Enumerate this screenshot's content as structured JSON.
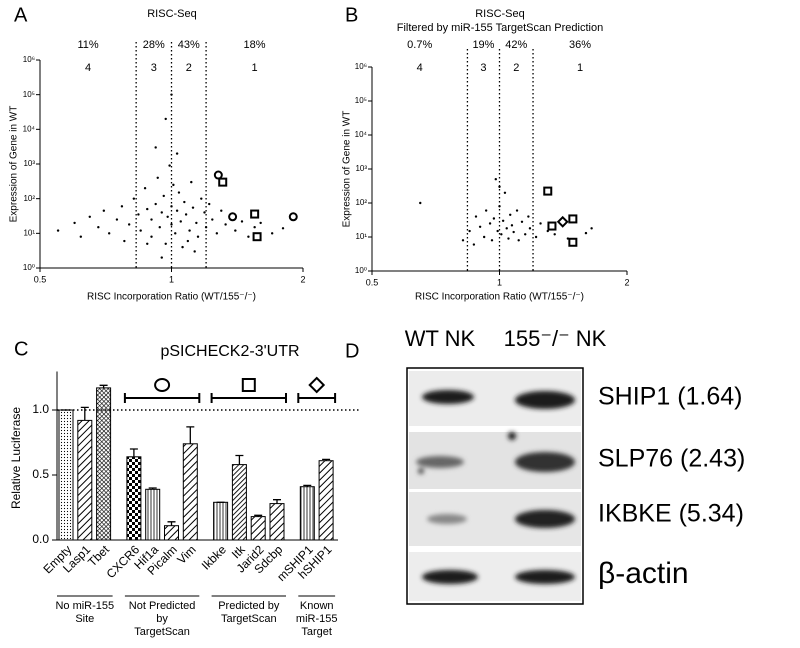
{
  "panel_labels": [
    "A",
    "B",
    "C",
    "D"
  ],
  "chart_data": [
    {
      "type": "scatter",
      "title": "RISC-Seq",
      "x_label": "RISC Incorporation Ratio (WT/155⁻/⁻)",
      "y_label": "Expression of Gene in WT",
      "x_scale": "log2",
      "y_scale": "log",
      "xlim": [
        0.5,
        2
      ],
      "ylim": [
        1,
        1000000
      ],
      "xticks": [
        0.5,
        1,
        2
      ],
      "yticks": [
        {
          "value": 1,
          "label": "10⁰"
        },
        {
          "value": 10,
          "label": "10¹"
        },
        {
          "value": 100,
          "label": "10²"
        },
        {
          "value": 1000,
          "label": "10³"
        },
        {
          "value": 10000,
          "label": "10⁴"
        },
        {
          "value": 100000,
          "label": "10⁵"
        },
        {
          "value": 1000000,
          "label": "10⁶"
        }
      ],
      "dividers": [
        0.83,
        1,
        1.2
      ],
      "regions": [
        {
          "percent": "11%",
          "label": "4"
        },
        {
          "percent": "28%",
          "label": "3"
        },
        {
          "percent": "43%",
          "label": "2"
        },
        {
          "percent": "18%",
          "label": "1"
        }
      ],
      "series": [
        {
          "color": "#000000",
          "marker": "dot",
          "x": [
            0.55,
            0.6,
            0.62,
            0.65,
            0.68,
            0.7,
            0.72,
            0.75,
            0.77,
            0.78,
            0.8,
            0.82,
            0.84,
            0.85,
            0.87,
            0.88,
            0.9,
            0.9,
            0.92,
            0.93,
            0.94,
            0.95,
            0.96,
            0.97,
            0.98,
            0.99,
            1.0,
            1.0,
            1.01,
            1.02,
            1.03,
            1.04,
            1.05,
            1.06,
            1.07,
            1.08,
            1.1,
            1.11,
            1.12,
            1.14,
            1.15,
            1.17,
            1.19,
            1.2,
            1.22,
            1.24,
            1.27,
            1.3,
            1.33,
            1.36,
            1.4,
            1.45,
            1.5,
            1.55,
            1.6,
            1.7,
            1.8,
            0.92,
            0.97,
            1.03,
            0.88,
            1.09,
            1.13,
            0.95,
            1.0
          ],
          "y": [
            12,
            20,
            8,
            30,
            15,
            45,
            10,
            25,
            60,
            6,
            18,
            100,
            35,
            12,
            200,
            50,
            8,
            25,
            70,
            400,
            15,
            40,
            120,
            5,
            30,
            900,
            60,
            18,
            250,
            10,
            45,
            150,
            22,
            4,
            80,
            35,
            12,
            300,
            55,
            20,
            8,
            100,
            40,
            15,
            70,
            25,
            10,
            45,
            18,
            30,
            12,
            22,
            8,
            15,
            20,
            10,
            14,
            3000,
            20000,
            2000,
            5,
            6,
            3,
            2,
            100000
          ]
        },
        {
          "color": "#000000",
          "marker": "circle",
          "x": [
            1.28,
            1.38,
            1.9
          ],
          "y": [
            480,
            30,
            30
          ]
        },
        {
          "color": "#000000",
          "marker": "square",
          "x": [
            1.31,
            1.55,
            1.57
          ],
          "y": [
            300,
            36,
            8
          ]
        }
      ]
    },
    {
      "type": "scatter",
      "title": "RISC-Seq",
      "subtitle": "Filtered by miR-155 TargetScan Prediction",
      "x_label": "RISC Incorporation Ratio (WT/155⁻/⁻)",
      "y_label": "Expression of Gene in WT",
      "x_scale": "log2",
      "y_scale": "log",
      "xlim": [
        0.5,
        2
      ],
      "ylim": [
        1,
        1000000
      ],
      "xticks": [
        0.5,
        1,
        2
      ],
      "yticks": [
        {
          "value": 1,
          "label": "10⁰"
        },
        {
          "value": 10,
          "label": "10¹"
        },
        {
          "value": 100,
          "label": "10²"
        },
        {
          "value": 1000,
          "label": "10³"
        },
        {
          "value": 10000,
          "label": "10⁴"
        },
        {
          "value": 100000,
          "label": "10⁵"
        },
        {
          "value": 1000000,
          "label": "10⁶"
        }
      ],
      "dividers": [
        0.84,
        1,
        1.2
      ],
      "regions": [
        {
          "percent": "0.7%",
          "label": "4"
        },
        {
          "percent": "19%",
          "label": "3"
        },
        {
          "percent": "42%",
          "label": "2"
        },
        {
          "percent": "36%",
          "label": "1"
        }
      ],
      "series": [
        {
          "color": "#000000",
          "marker": "dot",
          "x": [
            0.65,
            0.82,
            0.85,
            0.88,
            0.9,
            0.92,
            0.93,
            0.95,
            0.96,
            0.97,
            0.98,
            0.99,
            1.0,
            1.01,
            1.02,
            1.03,
            1.04,
            1.05,
            1.06,
            1.07,
            1.08,
            1.1,
            1.11,
            1.13,
            1.15,
            1.17,
            1.18,
            1.22,
            1.25,
            1.3,
            1.35,
            1.45,
            1.6,
            1.65,
            0.87,
            1.0
          ],
          "y": [
            100,
            8,
            15,
            40,
            20,
            10,
            60,
            25,
            8,
            35,
            500,
            15,
            80,
            12,
            30,
            200,
            18,
            9,
            45,
            22,
            14,
            60,
            8,
            28,
            12,
            40,
            18,
            10,
            25,
            15,
            12,
            9,
            13,
            18,
            6,
            300
          ]
        },
        {
          "color": "#000000",
          "marker": "square",
          "x": [
            1.3,
            1.33,
            1.49,
            1.49
          ],
          "y": [
            224,
            21,
            34,
            7
          ]
        },
        {
          "color": "#000000",
          "marker": "diamond",
          "x": [
            1.41
          ],
          "y": [
            28
          ]
        }
      ]
    },
    {
      "type": "bar",
      "title": "pSICHECK2-3'UTR",
      "y_label": "Relative Luciferase",
      "categories": [
        "Empty",
        "Lasp1",
        "Tbet",
        "CXCR6",
        "Hif1a",
        "Picalm",
        "Vim",
        "Ikbke",
        "Itk",
        "Jarid2",
        "Sdcbp",
        "mSHIP1",
        "hSHIP1"
      ],
      "values": [
        1.0,
        0.92,
        1.17,
        0.64,
        0.39,
        0.11,
        0.74,
        0.29,
        0.58,
        0.18,
        0.28,
        0.41,
        0.61
      ],
      "errors": [
        0,
        0.1,
        0.02,
        0.06,
        0.01,
        0.03,
        0.13,
        0,
        0.07,
        0.01,
        0.03,
        0.01,
        0.01
      ],
      "patterns": [
        "dots",
        "diag",
        "cross",
        "checker",
        "vlines",
        "diag",
        "diag",
        "vlines",
        "diag-dense",
        "diag",
        "diag",
        "vlines",
        "diag"
      ],
      "ylim": [
        0,
        1.25
      ],
      "yticks": [
        {
          "value": 0,
          "label": "0.0"
        },
        {
          "value": 0.5,
          "label": "0.5"
        },
        {
          "value": 1,
          "label": "1.0"
        }
      ],
      "reference_line": 1,
      "groups": [
        {
          "label": [
            "No miR-155",
            "Site"
          ]
        },
        {
          "label": [
            "Not Predicted",
            "by",
            "TargetScan"
          ],
          "marker": "circle"
        },
        {
          "label": [
            "Predicted by",
            "TargetScan"
          ],
          "marker": "square"
        },
        {
          "label": [
            "Known",
            "miR-155",
            "Target"
          ],
          "marker": "diamond"
        }
      ]
    }
  ],
  "blot": {
    "columns": [
      "WT NK",
      "155⁻/⁻ NK"
    ],
    "rows": [
      "SHIP1 (1.64)",
      "SLP76 (2.43)",
      "IKBKE (5.34)",
      "β-actin"
    ]
  }
}
